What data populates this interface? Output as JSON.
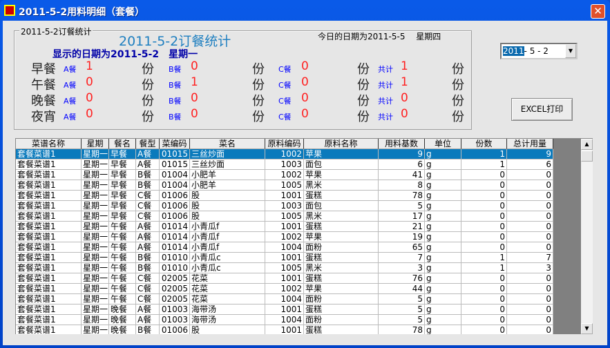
{
  "window": {
    "title": "2011-5-2用料明细（套餐）",
    "close_icon": "close-icon"
  },
  "summary": {
    "group_label": "2011-5-2订餐统计",
    "title": "2011-5-2订餐统计",
    "display_date": "显示的日期为2011-5-2　星期一",
    "today": "今日的日期为2011-5-5　 星期四",
    "unit": "份",
    "a_label": "A餐",
    "b_label": "B餐",
    "c_label": "C餐",
    "total_label": "共计",
    "meals": [
      {
        "name": "早餐",
        "a": "1",
        "b": "0",
        "c": "0",
        "total": "1"
      },
      {
        "name": "午餐",
        "a": "0",
        "b": "1",
        "c": "0",
        "total": "1"
      },
      {
        "name": "晚餐",
        "a": "0",
        "b": "0",
        "c": "0",
        "total": "0"
      },
      {
        "name": "夜宵",
        "a": "0",
        "b": "0",
        "c": "0",
        "total": "0"
      }
    ]
  },
  "date_picker": {
    "year": "2011",
    "rest": "- 5 - 2"
  },
  "excel_button": "EXCEL打印",
  "table": {
    "columns": [
      "菜谱名称",
      "星期",
      "餐名",
      "餐型",
      "菜编码",
      "菜名",
      "原料编码",
      "原料名称",
      "用料基数",
      "单位",
      "份数",
      "总计用量"
    ],
    "selected_row": 0,
    "rows": [
      [
        "套餐菜谱1",
        "星期一",
        "早餐",
        "A餐",
        "01015",
        "三丝炒面",
        "1002",
        "苹果",
        "9",
        "g",
        "1",
        "9"
      ],
      [
        "套餐菜谱1",
        "星期一",
        "早餐",
        "A餐",
        "01015",
        "三丝炒面",
        "1003",
        "面包",
        "6",
        "g",
        "1",
        "6"
      ],
      [
        "套餐菜谱1",
        "星期一",
        "早餐",
        "B餐",
        "01004",
        "小肥羊",
        "1002",
        "苹果",
        "41",
        "g",
        "0",
        "0"
      ],
      [
        "套餐菜谱1",
        "星期一",
        "早餐",
        "B餐",
        "01004",
        "小肥羊",
        "1005",
        "黑米",
        "8",
        "g",
        "0",
        "0"
      ],
      [
        "套餐菜谱1",
        "星期一",
        "早餐",
        "C餐",
        "01006",
        "股",
        "1001",
        "蛋糕",
        "78",
        "g",
        "0",
        "0"
      ],
      [
        "套餐菜谱1",
        "星期一",
        "早餐",
        "C餐",
        "01006",
        "股",
        "1003",
        "面包",
        "5",
        "g",
        "0",
        "0"
      ],
      [
        "套餐菜谱1",
        "星期一",
        "早餐",
        "C餐",
        "01006",
        "股",
        "1005",
        "黑米",
        "17",
        "g",
        "0",
        "0"
      ],
      [
        "套餐菜谱1",
        "星期一",
        "午餐",
        "A餐",
        "01014",
        "小青瓜f",
        "1001",
        "蛋糕",
        "21",
        "g",
        "0",
        "0"
      ],
      [
        "套餐菜谱1",
        "星期一",
        "午餐",
        "A餐",
        "01014",
        "小青瓜f",
        "1002",
        "苹果",
        "19",
        "g",
        "0",
        "0"
      ],
      [
        "套餐菜谱1",
        "星期一",
        "午餐",
        "A餐",
        "01014",
        "小青瓜f",
        "1004",
        "面粉",
        "65",
        "g",
        "0",
        "0"
      ],
      [
        "套餐菜谱1",
        "星期一",
        "午餐",
        "B餐",
        "01010",
        "小青瓜c",
        "1001",
        "蛋糕",
        "7",
        "g",
        "1",
        "7"
      ],
      [
        "套餐菜谱1",
        "星期一",
        "午餐",
        "B餐",
        "01010",
        "小青瓜c",
        "1005",
        "黑米",
        "3",
        "g",
        "1",
        "3"
      ],
      [
        "套餐菜谱1",
        "星期一",
        "午餐",
        "C餐",
        "02005",
        "花菜",
        "1001",
        "蛋糕",
        "76",
        "g",
        "0",
        "0"
      ],
      [
        "套餐菜谱1",
        "星期一",
        "午餐",
        "C餐",
        "02005",
        "花菜",
        "1002",
        "苹果",
        "44",
        "g",
        "0",
        "0"
      ],
      [
        "套餐菜谱1",
        "星期一",
        "午餐",
        "C餐",
        "02005",
        "花菜",
        "1004",
        "面粉",
        "5",
        "g",
        "0",
        "0"
      ],
      [
        "套餐菜谱1",
        "星期一",
        "晚餐",
        "A餐",
        "01003",
        "海带汤",
        "1001",
        "蛋糕",
        "5",
        "g",
        "0",
        "0"
      ],
      [
        "套餐菜谱1",
        "星期一",
        "晚餐",
        "A餐",
        "01003",
        "海带汤",
        "1004",
        "面粉",
        "5",
        "g",
        "0",
        "0"
      ],
      [
        "套餐菜谱1",
        "星期一",
        "晚餐",
        "B餐",
        "01006",
        "股",
        "1001",
        "蛋糕",
        "78",
        "g",
        "0",
        "0"
      ]
    ]
  }
}
